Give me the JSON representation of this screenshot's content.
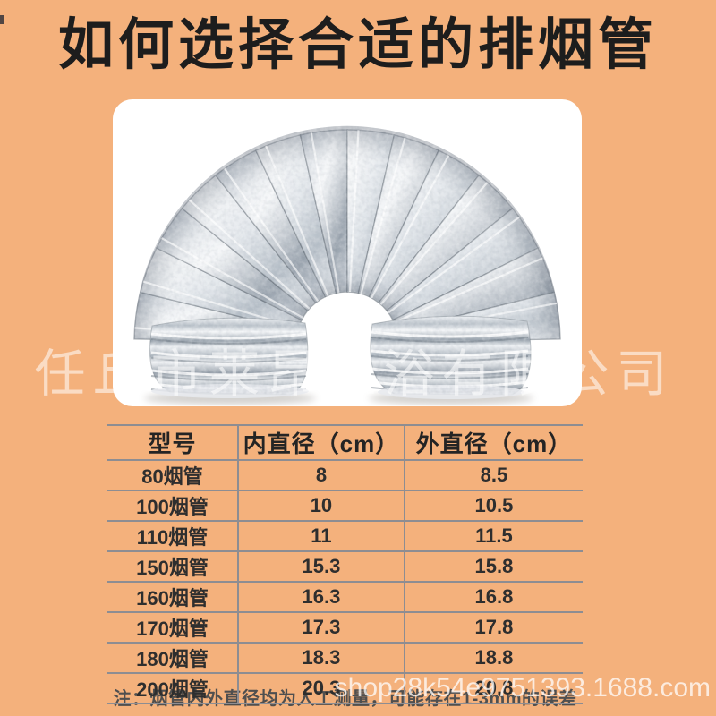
{
  "title": "如何选择合适的排烟管",
  "watermarks": {
    "company": "任丘市莱昂卫浴有限公司",
    "shop_url": "shop28k54e9751393.1688.com"
  },
  "product_image": {
    "icon": "aluminum-foil-flexible-duct"
  },
  "table": {
    "headers": [
      "型号",
      "内直径（cm）",
      "外直径（cm）"
    ],
    "rows": [
      [
        "80烟管",
        "8",
        "8.5"
      ],
      [
        "100烟管",
        "10",
        "10.5"
      ],
      [
        "110烟管",
        "11",
        "11.5"
      ],
      [
        "150烟管",
        "15.3",
        "15.8"
      ],
      [
        "160烟管",
        "16.3",
        "16.8"
      ],
      [
        "170烟管",
        "17.3",
        "17.8"
      ],
      [
        "180烟管",
        "18.3",
        "18.8"
      ],
      [
        "200烟管",
        "20.3",
        "20.8"
      ]
    ]
  },
  "note": "注：烟管内外直径均为人工测量，可能存在1-3mm的误差",
  "colors": {
    "background": "#f4b17c",
    "card": "#ffffff",
    "title_text": "#1d1d1d",
    "table_line": "#8d8d92",
    "table_text": "#2e2e2e",
    "note_text": "#4f4f4f",
    "watermark_text": "rgba(255,255,255,0.55)"
  }
}
